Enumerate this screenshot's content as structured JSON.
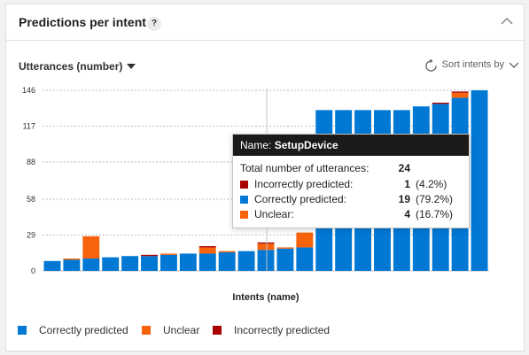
{
  "card": {
    "title": "Predictions per intent",
    "help_label": "?"
  },
  "controls": {
    "metric_label": "Utterances (number)",
    "sort_label": "Sort intents by"
  },
  "colors": {
    "correct": "#0078d4",
    "unclear": "#f7630c",
    "incorrect": "#a80000"
  },
  "chart_data": {
    "type": "bar",
    "stacked": true,
    "xlabel": "Intents (name)",
    "ylabel": "",
    "ylim": [
      0,
      146
    ],
    "yticks": [
      0,
      29,
      58,
      88,
      117,
      146
    ],
    "grid": true,
    "series": [
      {
        "name": "Correctly predicted",
        "values": [
          8,
          9,
          10,
          11,
          12,
          12,
          13,
          14,
          14,
          15,
          16,
          17,
          18,
          19,
          130,
          130,
          130,
          130,
          130,
          133,
          135,
          140,
          146
        ]
      },
      {
        "name": "Unclear",
        "values": [
          0,
          1,
          18,
          0,
          0,
          0,
          1,
          0,
          5,
          1,
          0,
          5,
          1,
          12,
          0,
          0,
          0,
          0,
          0,
          0,
          0,
          4,
          0
        ]
      },
      {
        "name": "Incorrectly predicted",
        "values": [
          0,
          0,
          0,
          0,
          0,
          1,
          0,
          0,
          1,
          0,
          0,
          1,
          0,
          0,
          0,
          0,
          0,
          0,
          0,
          0,
          1,
          1,
          0
        ]
      }
    ]
  },
  "tooltip": {
    "name_prefix": "Name: ",
    "name_value": "SetupDevice",
    "total_label": "Total number of utterances:",
    "total_value": "24",
    "rows": [
      {
        "label": "Incorrectly predicted:",
        "count": "1",
        "pct": "(4.2%)"
      },
      {
        "label": "Correctly predicted:",
        "count": "19",
        "pct": "(79.2%)"
      },
      {
        "label": "Unclear:",
        "count": "4",
        "pct": "(16.7%)"
      }
    ]
  },
  "legend": {
    "items": [
      {
        "label": "Correctly predicted"
      },
      {
        "label": "Unclear"
      },
      {
        "label": "Incorrectly predicted"
      }
    ]
  }
}
